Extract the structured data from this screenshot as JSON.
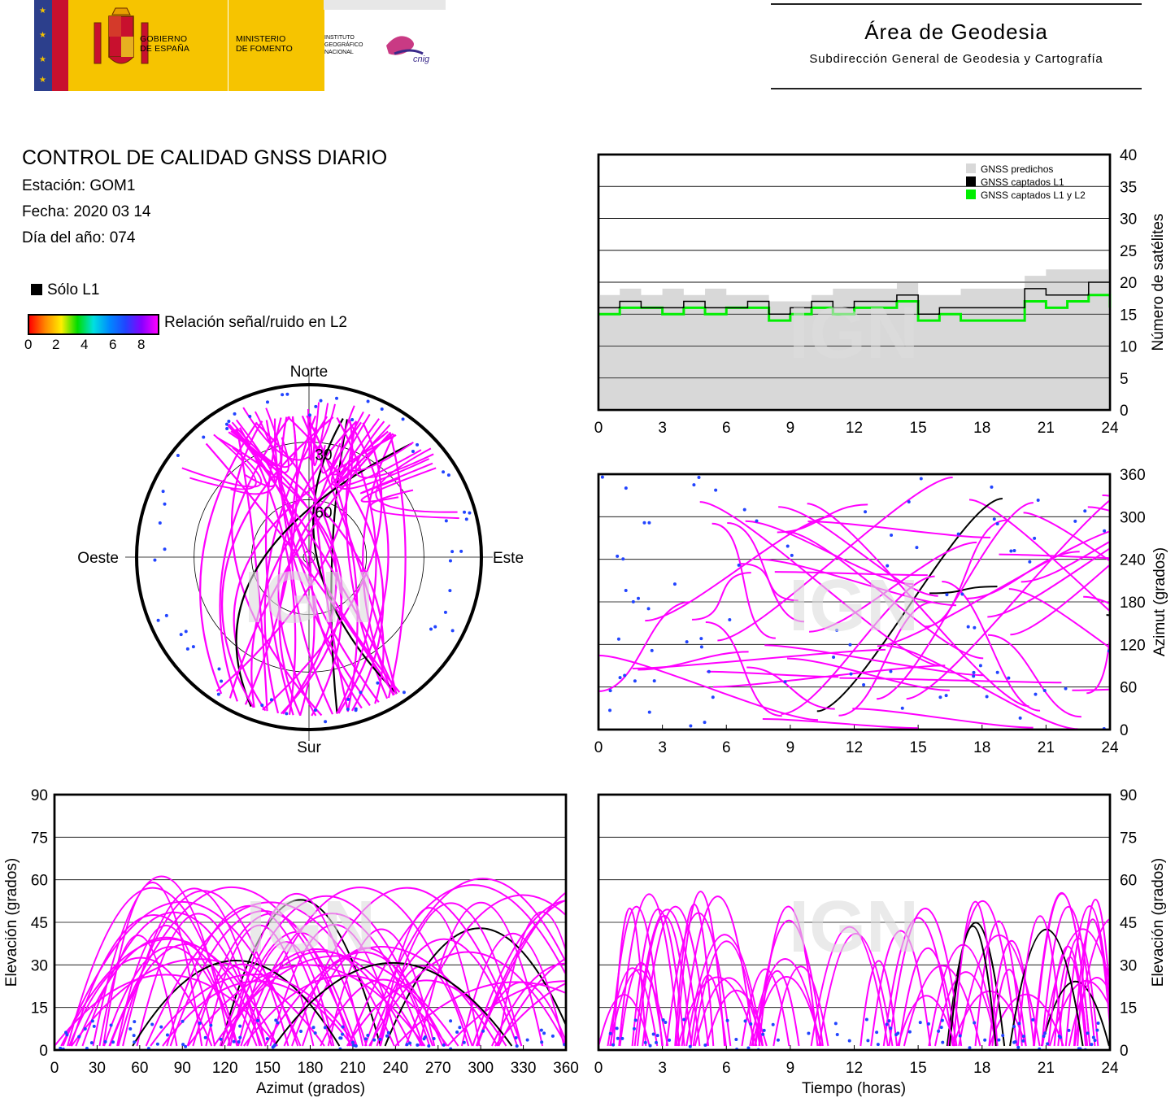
{
  "header": {
    "gobierno": "GOBIERNO\nDE ESPAÑA",
    "ministerio": "MINISTERIO\nDE FOMENTO",
    "ign": "INSTITUTO\nGEOGRÁFICO\nNACIONAL",
    "cnig": "cnig",
    "area_title": "Área de Geodesia",
    "area_subtitle": "Subdirección General de Geodesia y Cartografía"
  },
  "report": {
    "title": "CONTROL DE CALIDAD GNSS DIARIO",
    "station": "Estación: GOM1",
    "date": "Fecha: 2020 03 14",
    "doy": "Día del año: 074"
  },
  "legend": {
    "solo_l1": "Sólo L1",
    "snr_label": "Relación señal/ruido en L2",
    "snr_ticks": [
      "0",
      "2",
      "4",
      "6",
      "8"
    ],
    "colors": {
      "l1_only": "#000000",
      "snr_high": "#ff00ff",
      "snr_low": "#2244ff",
      "predicted": "#d8d8d8",
      "l1_l2": "#00ee00"
    }
  },
  "watermark": "IGN",
  "chart_data": [
    {
      "id": "skyplot",
      "type": "scatter",
      "projection": "polar",
      "direction_labels": {
        "north": "Norte",
        "south": "Sur",
        "east": "Este",
        "west": "Oeste"
      },
      "elevation_rings": [
        "30",
        "60"
      ]
    },
    {
      "id": "satellite-count",
      "type": "line",
      "ylabel": "Número de satélites",
      "xlim": [
        0,
        24
      ],
      "ylim": [
        0,
        40
      ],
      "x_ticks": [
        "0",
        "3",
        "6",
        "9",
        "12",
        "15",
        "18",
        "21",
        "24"
      ],
      "y_ticks": [
        "0",
        "5",
        "10",
        "15",
        "20",
        "25",
        "30",
        "35",
        "40"
      ],
      "grid": true,
      "legend_position": "top-right",
      "series": [
        {
          "name": "GNSS predichos",
          "type": "area",
          "color": "#d8d8d8",
          "x": [
            0,
            1,
            2,
            3,
            4,
            5,
            6,
            7,
            8,
            9,
            10,
            11,
            12,
            13,
            14,
            15,
            16,
            17,
            18,
            19,
            20,
            21,
            22,
            23,
            24
          ],
          "y": [
            18,
            19,
            18,
            19,
            18,
            19,
            18,
            18,
            17,
            17,
            18,
            19,
            19,
            19,
            20,
            18,
            18,
            19,
            19,
            19,
            21,
            22,
            22,
            22,
            21
          ]
        },
        {
          "name": "GNSS captados L1",
          "color": "#000000",
          "x": [
            0,
            1,
            2,
            3,
            4,
            5,
            6,
            7,
            8,
            9,
            10,
            11,
            12,
            13,
            14,
            15,
            16,
            17,
            18,
            19,
            20,
            21,
            22,
            23,
            24
          ],
          "y": [
            16,
            17,
            16,
            16,
            17,
            16,
            16,
            17,
            15,
            16,
            17,
            16,
            17,
            17,
            18,
            15,
            16,
            16,
            16,
            16,
            19,
            18,
            18,
            20,
            17
          ]
        },
        {
          "name": "GNSS captados L1 y L2",
          "color": "#00ee00",
          "x": [
            0,
            1,
            2,
            3,
            4,
            5,
            6,
            7,
            8,
            9,
            10,
            11,
            12,
            13,
            14,
            15,
            16,
            17,
            18,
            19,
            20,
            21,
            22,
            23,
            24
          ],
          "y": [
            15,
            16,
            16,
            15,
            16,
            15,
            16,
            16,
            14,
            15,
            16,
            15,
            16,
            16,
            17,
            14,
            15,
            14,
            14,
            14,
            17,
            16,
            17,
            18,
            16
          ]
        }
      ]
    },
    {
      "id": "azimuth-time",
      "type": "scatter",
      "ylabel": "Azimut (grados)",
      "xlim": [
        0,
        24
      ],
      "ylim": [
        0,
        360
      ],
      "x_ticks": [
        "0",
        "3",
        "6",
        "9",
        "12",
        "15",
        "18",
        "21",
        "24"
      ],
      "y_ticks": [
        "0",
        "60",
        "120",
        "180",
        "240",
        "300",
        "360"
      ],
      "grid": true
    },
    {
      "id": "elevation-azimuth",
      "type": "scatter",
      "xlabel": "Azimut (grados)",
      "ylabel": "Elevación (grados)",
      "xlim": [
        0,
        360
      ],
      "ylim": [
        0,
        90
      ],
      "x_ticks": [
        "0",
        "30",
        "60",
        "90",
        "120",
        "150",
        "180",
        "210",
        "240",
        "270",
        "300",
        "330",
        "360"
      ],
      "y_ticks": [
        "0",
        "15",
        "30",
        "45",
        "60",
        "75",
        "90"
      ],
      "grid": true
    },
    {
      "id": "elevation-time",
      "type": "scatter",
      "xlabel": "Tiempo (horas)",
      "ylabel": "Elevación (grados)",
      "xlim": [
        0,
        24
      ],
      "ylim": [
        0,
        90
      ],
      "x_ticks": [
        "0",
        "3",
        "6",
        "9",
        "12",
        "15",
        "18",
        "21",
        "24"
      ],
      "y_ticks": [
        "0",
        "15",
        "30",
        "45",
        "60",
        "75",
        "90"
      ],
      "grid": true
    }
  ]
}
